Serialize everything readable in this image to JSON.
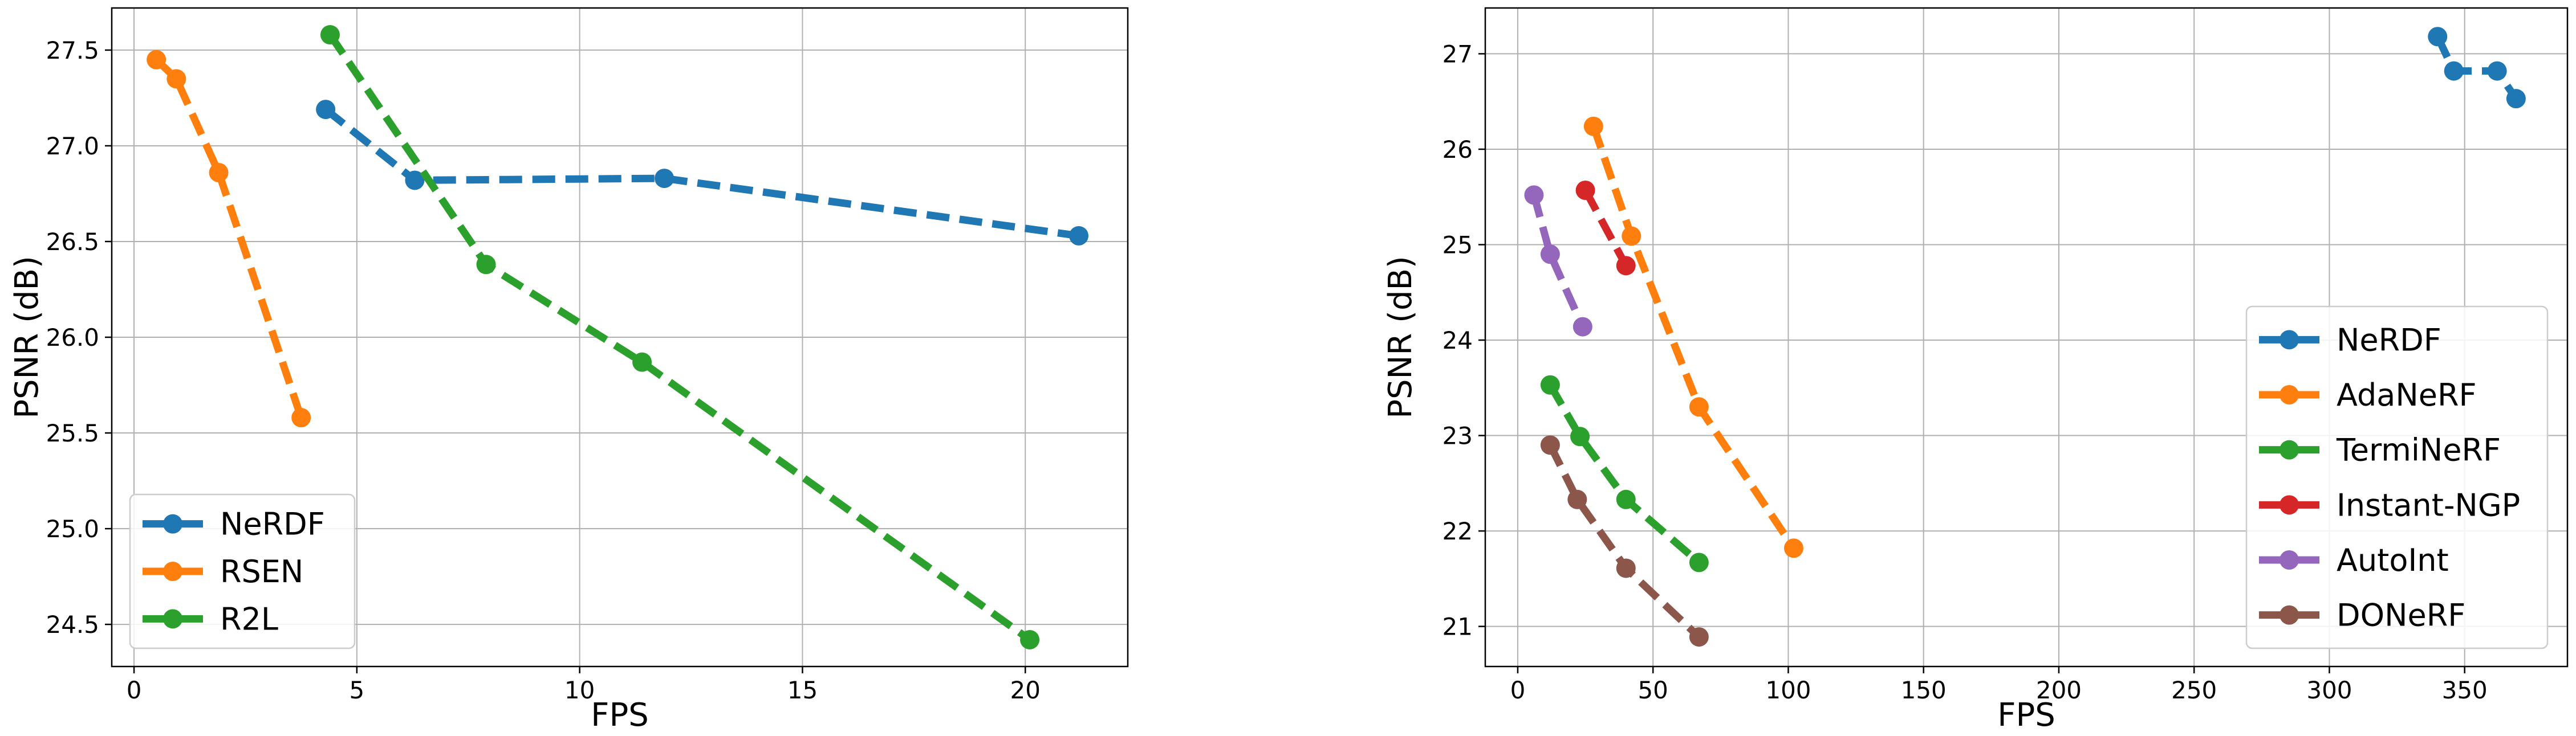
{
  "chart_data": [
    {
      "type": "line",
      "title": "",
      "xlabel": "FPS",
      "ylabel": "PSNR (dB)",
      "xlim": [
        -0.5,
        22.3
      ],
      "ylim": [
        24.28,
        27.72
      ],
      "xticks": [
        0,
        5,
        10,
        15,
        20
      ],
      "xtick_labels": [
        "0",
        "5",
        "10",
        "15",
        "20"
      ],
      "yticks": [
        24.5,
        25.0,
        25.5,
        26.0,
        26.5,
        27.0,
        27.5
      ],
      "ytick_labels": [
        "24.5",
        "25.0",
        "25.5",
        "26.0",
        "26.5",
        "27.0",
        "27.5"
      ],
      "grid": true,
      "legend_position": "lower-left",
      "series": [
        {
          "name": "NeRDF",
          "color": "#1f77b4",
          "x": [
            4.3,
            6.3,
            11.9,
            21.2
          ],
          "y": [
            27.19,
            26.82,
            26.83,
            26.53
          ]
        },
        {
          "name": "RSEN",
          "color": "#ff7f0e",
          "x": [
            0.5,
            0.95,
            1.9,
            3.75
          ],
          "y": [
            27.45,
            27.35,
            26.86,
            25.58
          ]
        },
        {
          "name": "R2L",
          "color": "#2ca02c",
          "x": [
            4.4,
            7.9,
            11.4,
            20.1
          ],
          "y": [
            27.58,
            26.38,
            25.87,
            24.42
          ]
        }
      ]
    },
    {
      "type": "line",
      "title": "",
      "xlabel": "FPS",
      "ylabel": "PSNR (dB)",
      "xlim": [
        -12,
        388
      ],
      "ylim": [
        20.58,
        27.48
      ],
      "xticks": [
        0,
        50,
        100,
        150,
        200,
        250,
        300,
        350
      ],
      "xtick_labels": [
        "0",
        "50",
        "100",
        "150",
        "200",
        "250",
        "300",
        "350"
      ],
      "yticks": [
        21,
        22,
        23,
        24,
        25,
        26,
        27
      ],
      "ytick_labels": [
        "21",
        "22",
        "23",
        "24",
        "25",
        "26",
        "27"
      ],
      "grid": true,
      "legend_position": "lower-right",
      "series": [
        {
          "name": "NeRDF",
          "color": "#1f77b4",
          "x": [
            340,
            346,
            362,
            369
          ],
          "y": [
            27.18,
            26.82,
            26.82,
            26.53
          ]
        },
        {
          "name": "AdaNeRF",
          "color": "#ff7f0e",
          "x": [
            28,
            42,
            67,
            102
          ],
          "y": [
            26.24,
            25.09,
            23.3,
            21.82
          ]
        },
        {
          "name": "TermiNeRF",
          "color": "#2ca02c",
          "x": [
            12,
            23,
            40,
            67
          ],
          "y": [
            23.53,
            22.99,
            22.33,
            21.67
          ]
        },
        {
          "name": "Instant-NGP",
          "color": "#d62728",
          "x": [
            25,
            40
          ],
          "y": [
            25.57,
            24.78
          ]
        },
        {
          "name": "AutoInt",
          "color": "#9467bd",
          "x": [
            6,
            12,
            24
          ],
          "y": [
            25.52,
            24.9,
            24.14
          ]
        },
        {
          "name": "DONeRF",
          "color": "#8c564b",
          "x": [
            12,
            22,
            40,
            67
          ],
          "y": [
            22.9,
            22.33,
            21.61,
            20.89
          ]
        }
      ]
    }
  ]
}
